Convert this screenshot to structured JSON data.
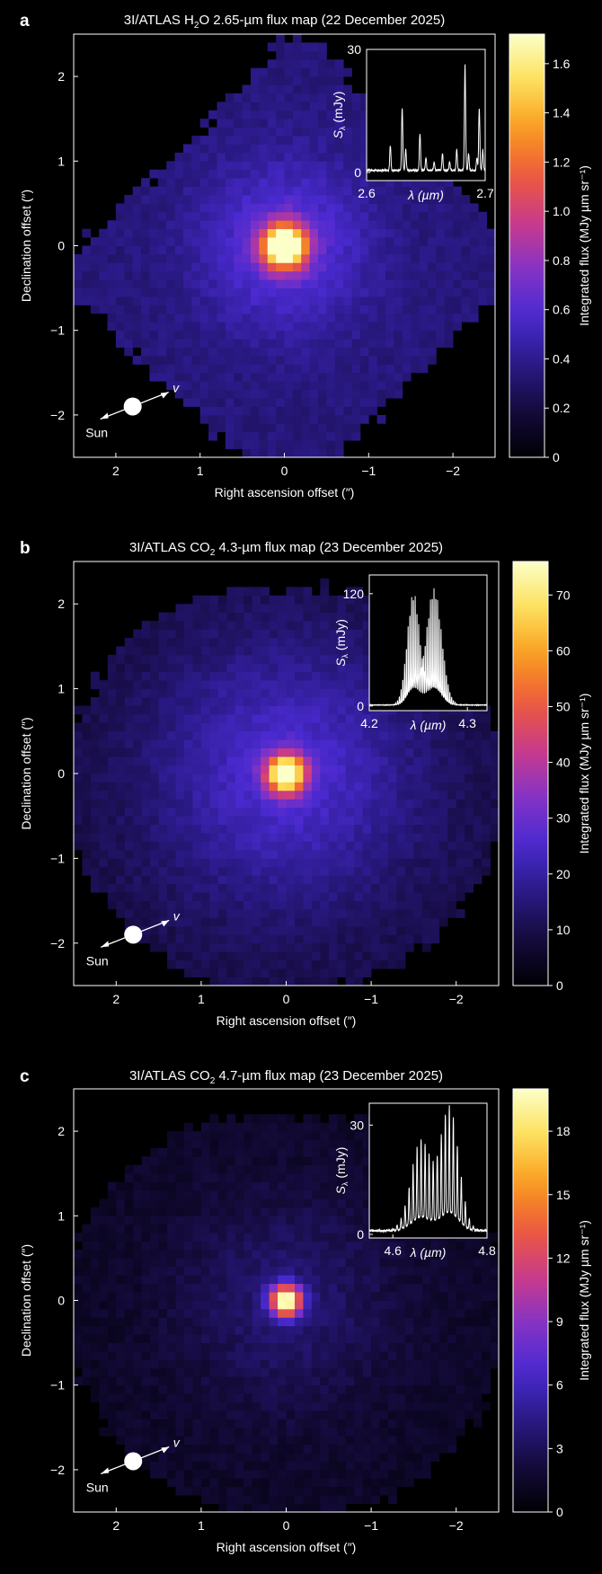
{
  "colors": {
    "background": "#000000",
    "colormap": [
      "#000004",
      "#150b3c",
      "#2a1a87",
      "#4a2ad0",
      "#8533c6",
      "#c93a8a",
      "#ed5a3c",
      "#f99b1e",
      "#fde05a",
      "#fcffc8"
    ],
    "spectrum_line": "#ffffff"
  },
  "chart_data": [
    {
      "type": "heatmap",
      "panel": "a",
      "title_parts": [
        "3I/ATLAS H",
        "2",
        "O 2.65-µm flux map (22 December 2025)"
      ],
      "xlabel": "Right ascension offset (″)",
      "ylabel": "Declination offset (″)",
      "xlim": [
        2.5,
        -2.5
      ],
      "ylim": [
        -2.5,
        2.5
      ],
      "xticks": [
        2,
        1,
        0,
        -1,
        -2
      ],
      "yticks": [
        -2,
        -1,
        0,
        1,
        2
      ],
      "peak_position": [
        0,
        0
      ],
      "colorbar": {
        "label": "Integrated flux (MJy µm sr⁻¹)",
        "range": [
          0,
          1.72
        ],
        "ticks": [
          0,
          0.2,
          0.4,
          0.6,
          0.8,
          1.0,
          1.2,
          1.4,
          1.6
        ],
        "tick_labels": [
          "0",
          "0.2",
          "0.4",
          "0.6",
          "0.8",
          "1.0",
          "1.2",
          "1.4",
          "1.6"
        ]
      },
      "sun_label": "Sun",
      "velocity_label": "v",
      "inset": {
        "type": "line",
        "xlabel": "λ (µm)",
        "ylabel_parts": [
          "S",
          "λ",
          " (mJy)"
        ],
        "xlim": [
          2.6,
          2.7
        ],
        "ylim": [
          -2,
          30
        ],
        "xticks": [
          "2.6",
          "2.7"
        ],
        "yticks": [
          "0",
          "30"
        ],
        "baseline": 0.5,
        "peaks": [
          [
            2.62,
            6
          ],
          [
            2.63,
            15
          ],
          [
            2.633,
            5
          ],
          [
            2.645,
            9
          ],
          [
            2.65,
            3
          ],
          [
            2.657,
            2
          ],
          [
            2.664,
            4
          ],
          [
            2.67,
            2
          ],
          [
            2.676,
            5
          ],
          [
            2.683,
            26
          ],
          [
            2.686,
            4
          ],
          [
            2.693,
            3
          ],
          [
            2.695,
            15
          ],
          [
            2.698,
            5
          ]
        ]
      }
    },
    {
      "type": "heatmap",
      "panel": "b",
      "title_parts": [
        "3I/ATLAS CO",
        "2",
        " 4.3-µm flux map (23 December 2025)"
      ],
      "xlabel": "Right ascension offset (″)",
      "ylabel": "Declination offset (″)",
      "xlim": [
        2.5,
        -2.5
      ],
      "ylim": [
        -2.5,
        2.5
      ],
      "xticks": [
        2,
        1,
        0,
        -1,
        -2
      ],
      "yticks": [
        -2,
        -1,
        0,
        1,
        2
      ],
      "peak_position": [
        0,
        0
      ],
      "colorbar": {
        "label": "Integrated flux (MJy µm sr⁻¹)",
        "range": [
          0,
          76
        ],
        "ticks": [
          0,
          10,
          20,
          30,
          40,
          50,
          60,
          70
        ],
        "tick_labels": [
          "0",
          "10",
          "20",
          "30",
          "40",
          "50",
          "60",
          "70"
        ]
      },
      "sun_label": "Sun",
      "velocity_label": "v",
      "inset": {
        "type": "line",
        "xlabel": "λ (µm)",
        "ylabel_parts": [
          "S",
          "λ",
          " (mJy)"
        ],
        "xlim": [
          4.2,
          4.32
        ],
        "ylim": [
          -5,
          140
        ],
        "xticks": [
          "4.2",
          "4.3"
        ],
        "yticks": [
          "0",
          "120"
        ],
        "bands": [
          {
            "center": 4.245,
            "width": 0.009,
            "amp": 120,
            "spacing": 0.0018
          },
          {
            "center": 4.266,
            "width": 0.011,
            "amp": 125,
            "spacing": 0.0018
          }
        ]
      }
    },
    {
      "type": "heatmap",
      "panel": "c",
      "title_parts": [
        "3I/ATLAS CO",
        "2",
        " 4.7-µm flux map (23 December 2025)"
      ],
      "xlabel": "Right ascension offset (″)",
      "ylabel": "Declination offset (″)",
      "xlim": [
        2.5,
        -2.5
      ],
      "ylim": [
        -2.5,
        2.5
      ],
      "xticks": [
        2,
        1,
        0,
        -1,
        -2
      ],
      "yticks": [
        -2,
        -1,
        0,
        1,
        2
      ],
      "peak_position": [
        0,
        0
      ],
      "colorbar": {
        "label": "Integrated flux (MJy µm sr⁻¹)",
        "range": [
          0,
          20
        ],
        "ticks": [
          0,
          3,
          6,
          9,
          12,
          15,
          18
        ],
        "tick_labels": [
          "0",
          "3",
          "6",
          "9",
          "12",
          "15",
          "18"
        ]
      },
      "sun_label": "Sun",
      "velocity_label": "v",
      "inset": {
        "type": "line",
        "xlabel": "λ (µm)",
        "ylabel_parts": [
          "S",
          "λ",
          " (mJy)"
        ],
        "xlim": [
          4.55,
          4.8
        ],
        "ylim": [
          -1,
          36
        ],
        "xticks": [
          "4.6",
          "4.8"
        ],
        "yticks": [
          "0",
          "30"
        ],
        "bands": [
          {
            "center": 4.66,
            "width": 0.03,
            "amp": 25,
            "spacing": 0.0085
          },
          {
            "center": 4.72,
            "width": 0.028,
            "amp": 34,
            "spacing": 0.0085
          }
        ]
      }
    }
  ]
}
